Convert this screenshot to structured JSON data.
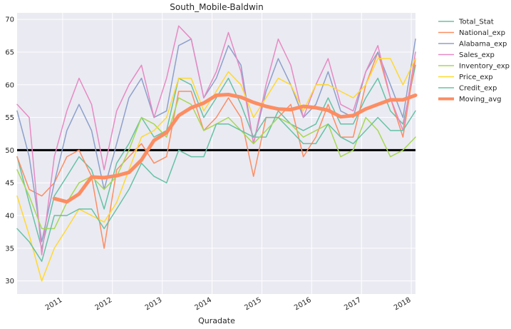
{
  "chart_data": {
    "type": "line",
    "title": "South_Mobile-Baldwin",
    "xlabel": "Quradate",
    "ylabel": "",
    "ylim": [
      28,
      71
    ],
    "xlim": [
      "2010-02-01",
      "2018-02-01"
    ],
    "yticks": [
      30,
      35,
      40,
      45,
      50,
      55,
      60,
      65,
      70
    ],
    "xticks": [
      "2011",
      "2012",
      "2013",
      "2014",
      "2015",
      "2016",
      "2017",
      "2018"
    ],
    "grid": true,
    "legend_position": "outside right",
    "reference_line": {
      "y": 50,
      "color": "#000000"
    },
    "x": [
      "2010-02",
      "2010-05",
      "2010-08",
      "2010-11",
      "2011-02",
      "2011-05",
      "2011-08",
      "2011-11",
      "2012-02",
      "2012-05",
      "2012-08",
      "2012-11",
      "2013-02",
      "2013-05",
      "2013-08",
      "2013-11",
      "2014-02",
      "2014-05",
      "2014-08",
      "2014-11",
      "2015-02",
      "2015-05",
      "2015-08",
      "2015-11",
      "2016-02",
      "2016-05",
      "2016-08",
      "2016-11",
      "2017-02",
      "2017-05",
      "2017-08",
      "2017-11",
      "2018-02"
    ],
    "series": [
      {
        "name": "Total_Stat",
        "color": "#66c2a5",
        "width": 1.5,
        "values": [
          49,
          42,
          35,
          43,
          46,
          49,
          47,
          41,
          48,
          51,
          55,
          52,
          53,
          61,
          60,
          55,
          58,
          61,
          57,
          52,
          52,
          56,
          54,
          53,
          54,
          58,
          54,
          54,
          58,
          61,
          56,
          54,
          63
        ]
      },
      {
        "name": "National_exp",
        "color": "#fc8d62",
        "width": 1.5,
        "values": [
          49,
          44,
          43,
          45,
          49,
          50,
          46,
          35,
          47,
          49,
          51,
          48,
          49,
          59,
          59,
          53,
          55,
          58,
          55,
          46,
          55,
          55,
          57,
          49,
          52,
          57,
          52,
          52,
          60,
          65,
          58,
          52,
          64
        ]
      },
      {
        "name": "Alabama_exp",
        "color": "#8da0cb",
        "width": 1.5,
        "values": [
          56,
          49,
          36,
          45,
          53,
          57,
          53,
          44,
          51,
          58,
          61,
          55,
          56,
          66,
          67,
          58,
          61,
          66,
          63,
          51,
          59,
          64,
          60,
          55,
          57,
          62,
          56,
          55,
          62,
          65,
          60,
          55,
          67
        ]
      },
      {
        "name": "Sales_exp",
        "color": "#e78ac3",
        "width": 1.5,
        "values": [
          57,
          55,
          34,
          49,
          56,
          61,
          57,
          47,
          56,
          60,
          63,
          55,
          61,
          69,
          67,
          58,
          62,
          68,
          62,
          51,
          60,
          67,
          63,
          55,
          60,
          64,
          57,
          56,
          62,
          66,
          58,
          53,
          65
        ]
      },
      {
        "name": "Inventory_exp",
        "color": "#a6d854",
        "width": 1.5,
        "values": [
          47,
          43,
          38,
          38,
          42,
          45,
          46,
          44,
          46,
          50,
          55,
          54,
          52,
          58,
          57,
          53,
          54,
          55,
          53,
          51,
          53,
          55,
          54,
          52,
          53,
          54,
          49,
          50,
          55,
          53,
          49,
          50,
          52
        ]
      },
      {
        "name": "Price_exp",
        "color": "#ffd92f",
        "width": 1.5,
        "values": [
          43,
          37,
          30,
          35,
          38,
          41,
          40,
          39,
          42,
          47,
          52,
          53,
          55,
          61,
          61,
          56,
          59,
          62,
          60,
          55,
          58,
          61,
          60,
          56,
          60,
          60,
          59,
          58,
          60,
          64,
          64,
          60,
          64
        ]
      },
      {
        "name": "Credit_exp",
        "color": "#66c2a5",
        "width": 1.5,
        "values": [
          38,
          36,
          33,
          40,
          40,
          41,
          41,
          38,
          41,
          44,
          48,
          46,
          45,
          50,
          49,
          49,
          54,
          54,
          53,
          52,
          55,
          55,
          53,
          51,
          51,
          54,
          52,
          51,
          53,
          55,
          53,
          53,
          56
        ]
      },
      {
        "name": "Moving_avg",
        "color": "#fc8d62",
        "width": 5,
        "values": [
          null,
          null,
          null,
          42.6,
          42.1,
          43.3,
          45.9,
          45.8,
          46.1,
          46.6,
          48.5,
          51.5,
          52.7,
          55.3,
          56.5,
          57.2,
          58.4,
          58.5,
          58.1,
          57.3,
          56.7,
          56.3,
          56.2,
          56.7,
          56.5,
          56.1,
          55.1,
          55.3,
          56.3,
          57.0,
          57.7,
          57.7,
          58.4
        ]
      }
    ]
  }
}
